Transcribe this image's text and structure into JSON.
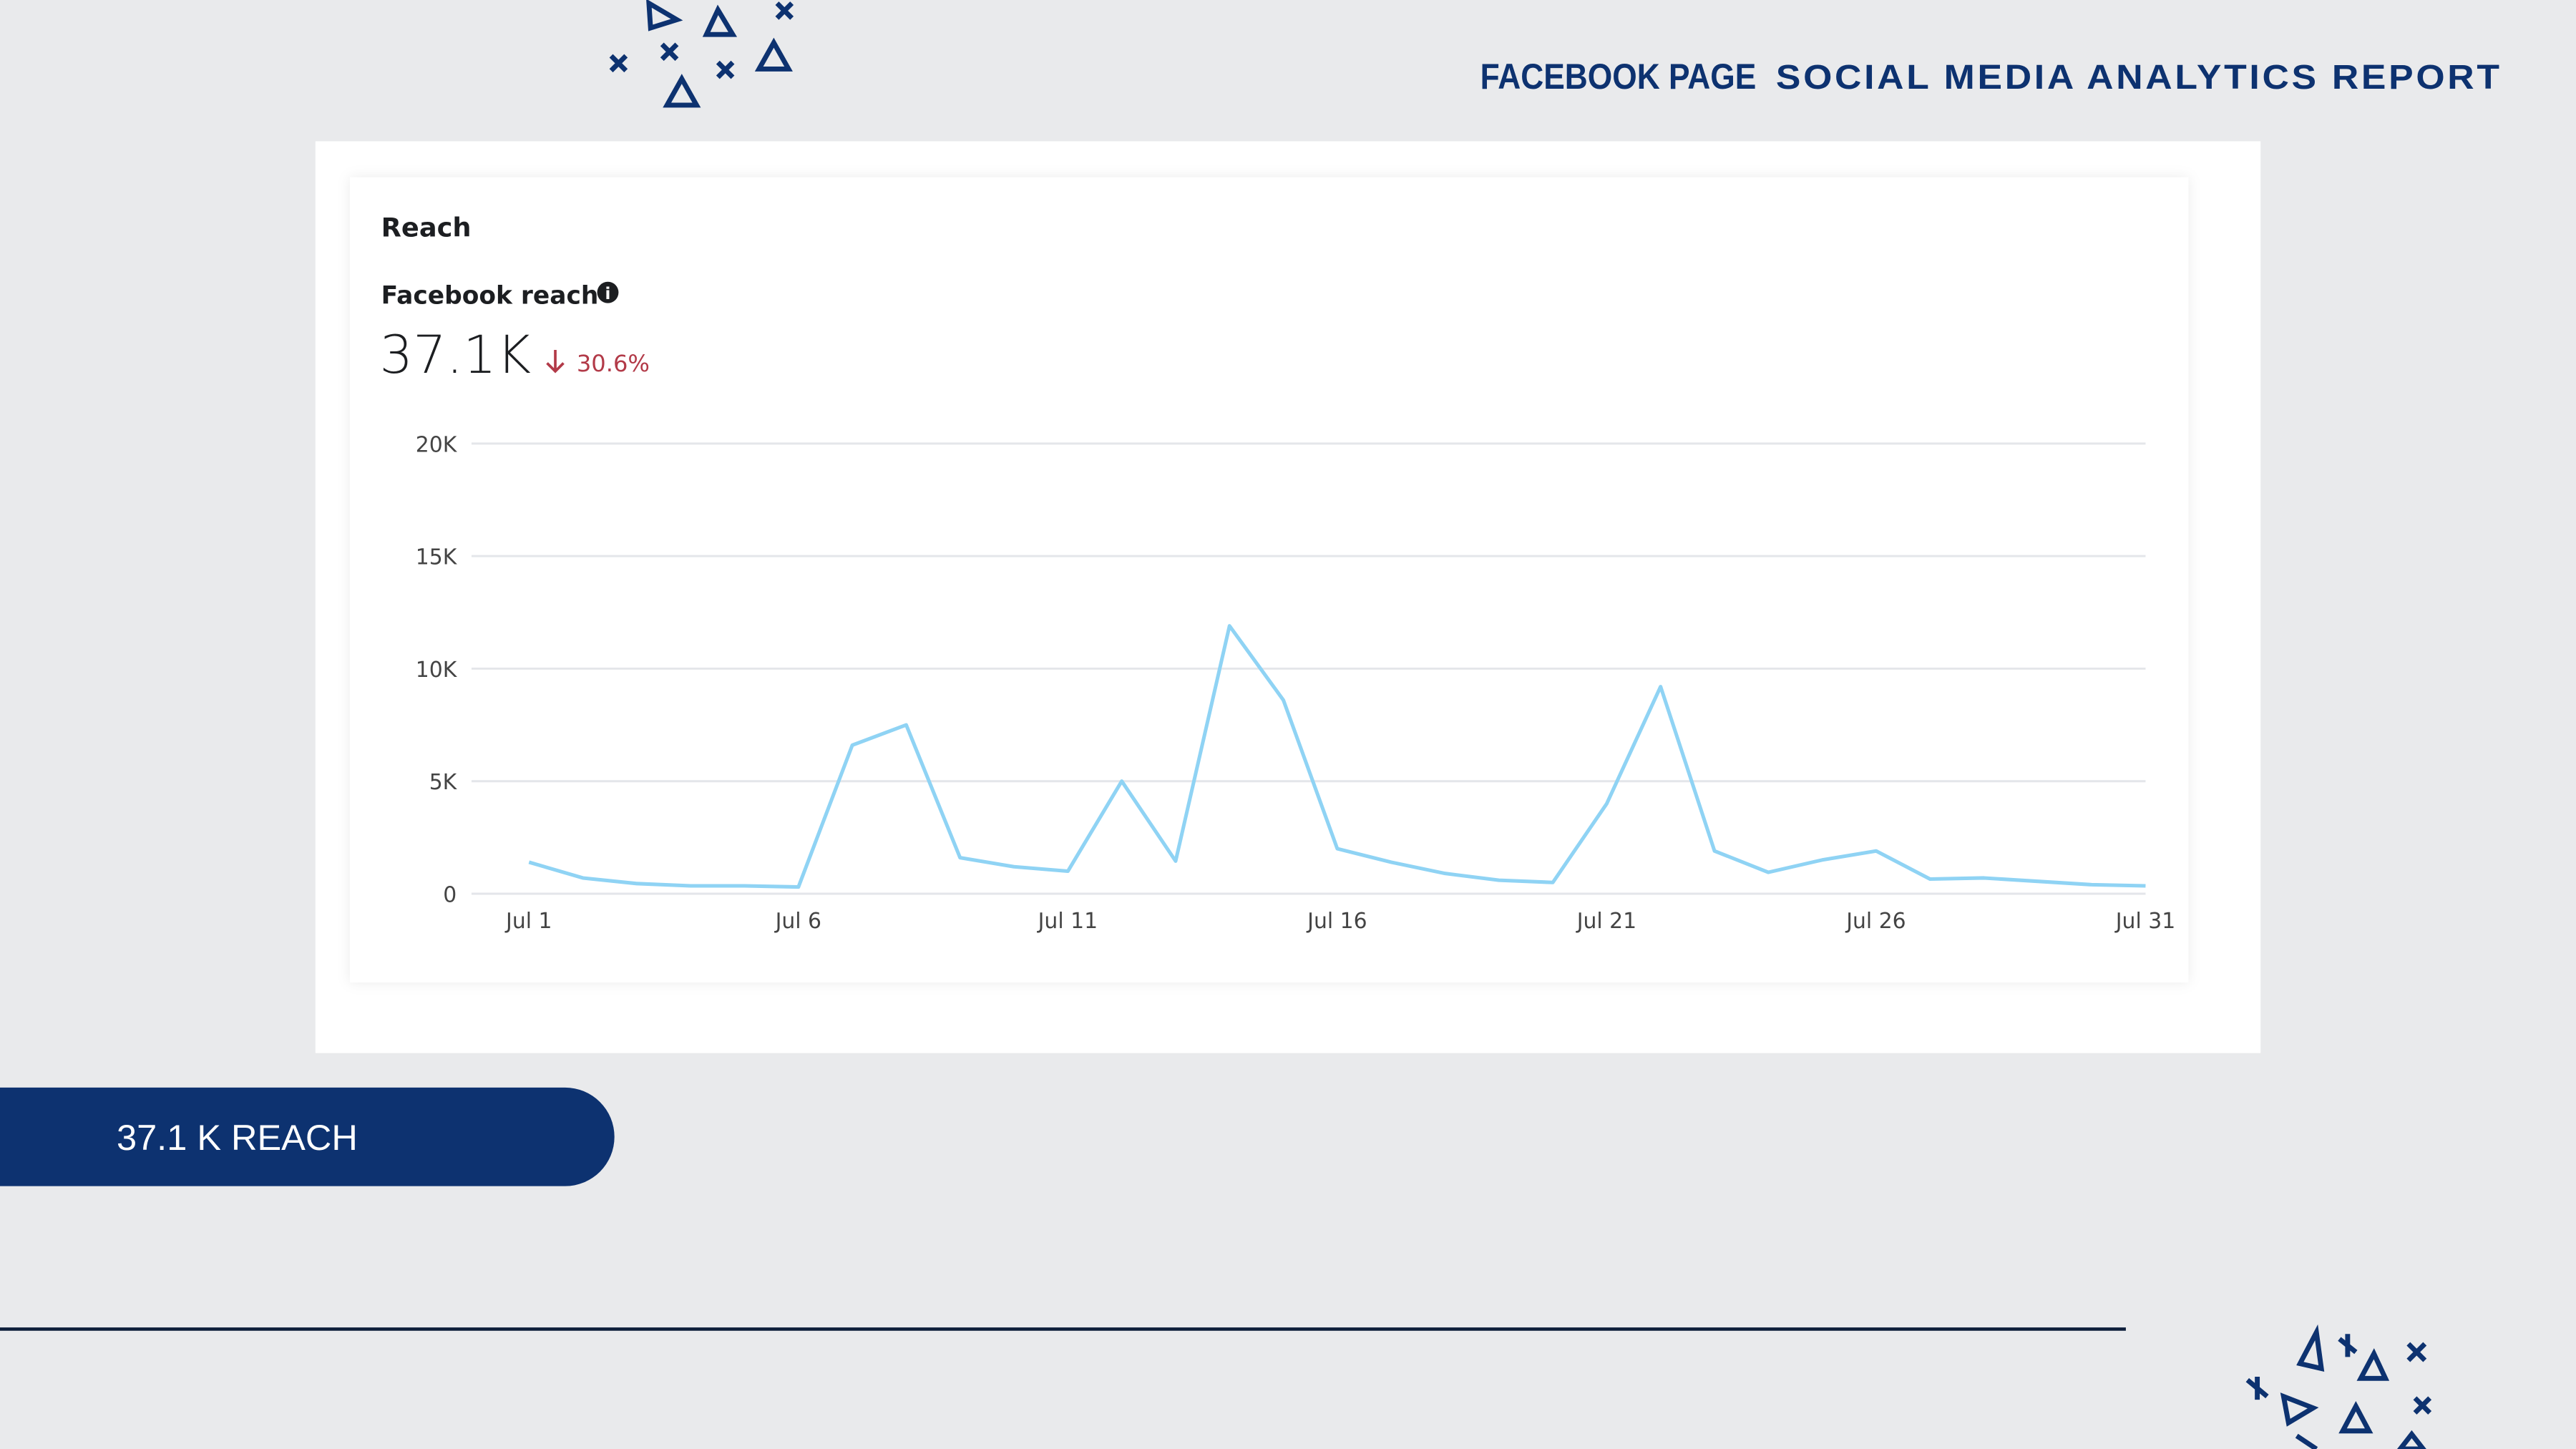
{
  "header": {
    "brand": "FACEBOOK PAGE",
    "title": "SOCIAL MEDIA ANALYTICS REPORT"
  },
  "card": {
    "title": "Reach",
    "metric": "Facebook reach",
    "total": "37.1K",
    "change": "30.6%"
  },
  "banner": "37.1 K REACH",
  "chart_data": {
    "type": "line",
    "categories": [
      "Jul 1",
      null,
      null,
      null,
      null,
      "Jul 6",
      null,
      null,
      null,
      null,
      "Jul 11",
      null,
      null,
      null,
      null,
      "Jul 16",
      null,
      null,
      null,
      null,
      "Jul 21",
      null,
      null,
      null,
      null,
      "Jul 26",
      null,
      null,
      null,
      null,
      "Jul 31"
    ],
    "series": [
      {
        "name": "Facebook reach",
        "color": "#8fd3f4",
        "values": [
          1400,
          700,
          450,
          350,
          350,
          300,
          6600,
          7500,
          1600,
          1200,
          1000,
          5000,
          1450,
          11900,
          8600,
          2000,
          1400,
          900,
          600,
          500,
          4000,
          9200,
          1900,
          950,
          1500,
          1900,
          650,
          700,
          550,
          400,
          350
        ]
      }
    ],
    "ylim": [
      0,
      20000
    ],
    "yticks": [
      0,
      {
        "value": 5000,
        "label": "5K"
      },
      {
        "value": 10000,
        "label": "10K"
      },
      {
        "value": 15000,
        "label": "15K"
      },
      {
        "value": 20000,
        "label": "20K"
      }
    ],
    "grid": true
  }
}
